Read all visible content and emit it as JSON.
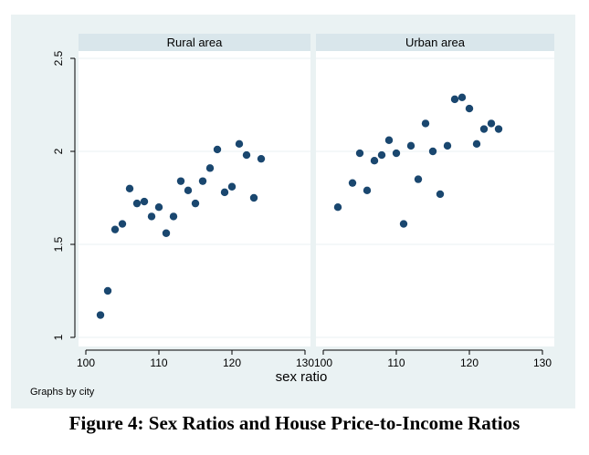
{
  "chart_data": {
    "type": "scatter",
    "panels": [
      {
        "name": "Rural area",
        "points": [
          {
            "x": 102,
            "y": 1.12
          },
          {
            "x": 103,
            "y": 1.25
          },
          {
            "x": 104,
            "y": 1.58
          },
          {
            "x": 105,
            "y": 1.61
          },
          {
            "x": 106,
            "y": 1.8
          },
          {
            "x": 107,
            "y": 1.72
          },
          {
            "x": 108,
            "y": 1.73
          },
          {
            "x": 109,
            "y": 1.65
          },
          {
            "x": 110,
            "y": 1.7
          },
          {
            "x": 111,
            "y": 1.56
          },
          {
            "x": 112,
            "y": 1.65
          },
          {
            "x": 113,
            "y": 1.84
          },
          {
            "x": 114,
            "y": 1.79
          },
          {
            "x": 115,
            "y": 1.72
          },
          {
            "x": 116,
            "y": 1.84
          },
          {
            "x": 117,
            "y": 1.91
          },
          {
            "x": 118,
            "y": 2.01
          },
          {
            "x": 119,
            "y": 1.78
          },
          {
            "x": 120,
            "y": 1.81
          },
          {
            "x": 121,
            "y": 2.04
          },
          {
            "x": 122,
            "y": 1.98
          },
          {
            "x": 123,
            "y": 1.75
          },
          {
            "x": 124,
            "y": 1.96
          }
        ]
      },
      {
        "name": "Urban area",
        "points": [
          {
            "x": 102,
            "y": 1.7
          },
          {
            "x": 104,
            "y": 1.83
          },
          {
            "x": 105,
            "y": 1.99
          },
          {
            "x": 106,
            "y": 1.79
          },
          {
            "x": 107,
            "y": 1.95
          },
          {
            "x": 108,
            "y": 1.98
          },
          {
            "x": 109,
            "y": 2.06
          },
          {
            "x": 110,
            "y": 1.99
          },
          {
            "x": 111,
            "y": 1.61
          },
          {
            "x": 112,
            "y": 2.03
          },
          {
            "x": 113,
            "y": 1.85
          },
          {
            "x": 114,
            "y": 2.15
          },
          {
            "x": 115,
            "y": 2.0
          },
          {
            "x": 116,
            "y": 1.77
          },
          {
            "x": 117,
            "y": 2.03
          },
          {
            "x": 118,
            "y": 2.28
          },
          {
            "x": 119,
            "y": 2.29
          },
          {
            "x": 120,
            "y": 2.23
          },
          {
            "x": 121,
            "y": 2.04
          },
          {
            "x": 122,
            "y": 2.12
          },
          {
            "x": 123,
            "y": 2.15
          },
          {
            "x": 124,
            "y": 2.12
          }
        ]
      }
    ],
    "xlabel": "sex ratio",
    "ylabel": "",
    "xlim": [
      100,
      130
    ],
    "ylim": [
      1,
      2.5
    ],
    "xticks": [
      100,
      110,
      120,
      130
    ],
    "xtick_labels": [
      "100",
      "110",
      "120",
      "130"
    ],
    "yticks": [
      1,
      1.5,
      2,
      2.5
    ],
    "ytick_labels": [
      "1",
      "1.5",
      "2",
      "2.5"
    ],
    "grid": true,
    "note": "Graphs by city",
    "colors": {
      "outer_background": "#eaf2f3",
      "panel_background": "#ffffff",
      "strip_background": "#d9e6eb",
      "marker": "#1a476f",
      "grid": "#eaf2f3"
    }
  },
  "caption": "Figure 4:  Sex Ratios and House Price-to-Income Ratios"
}
